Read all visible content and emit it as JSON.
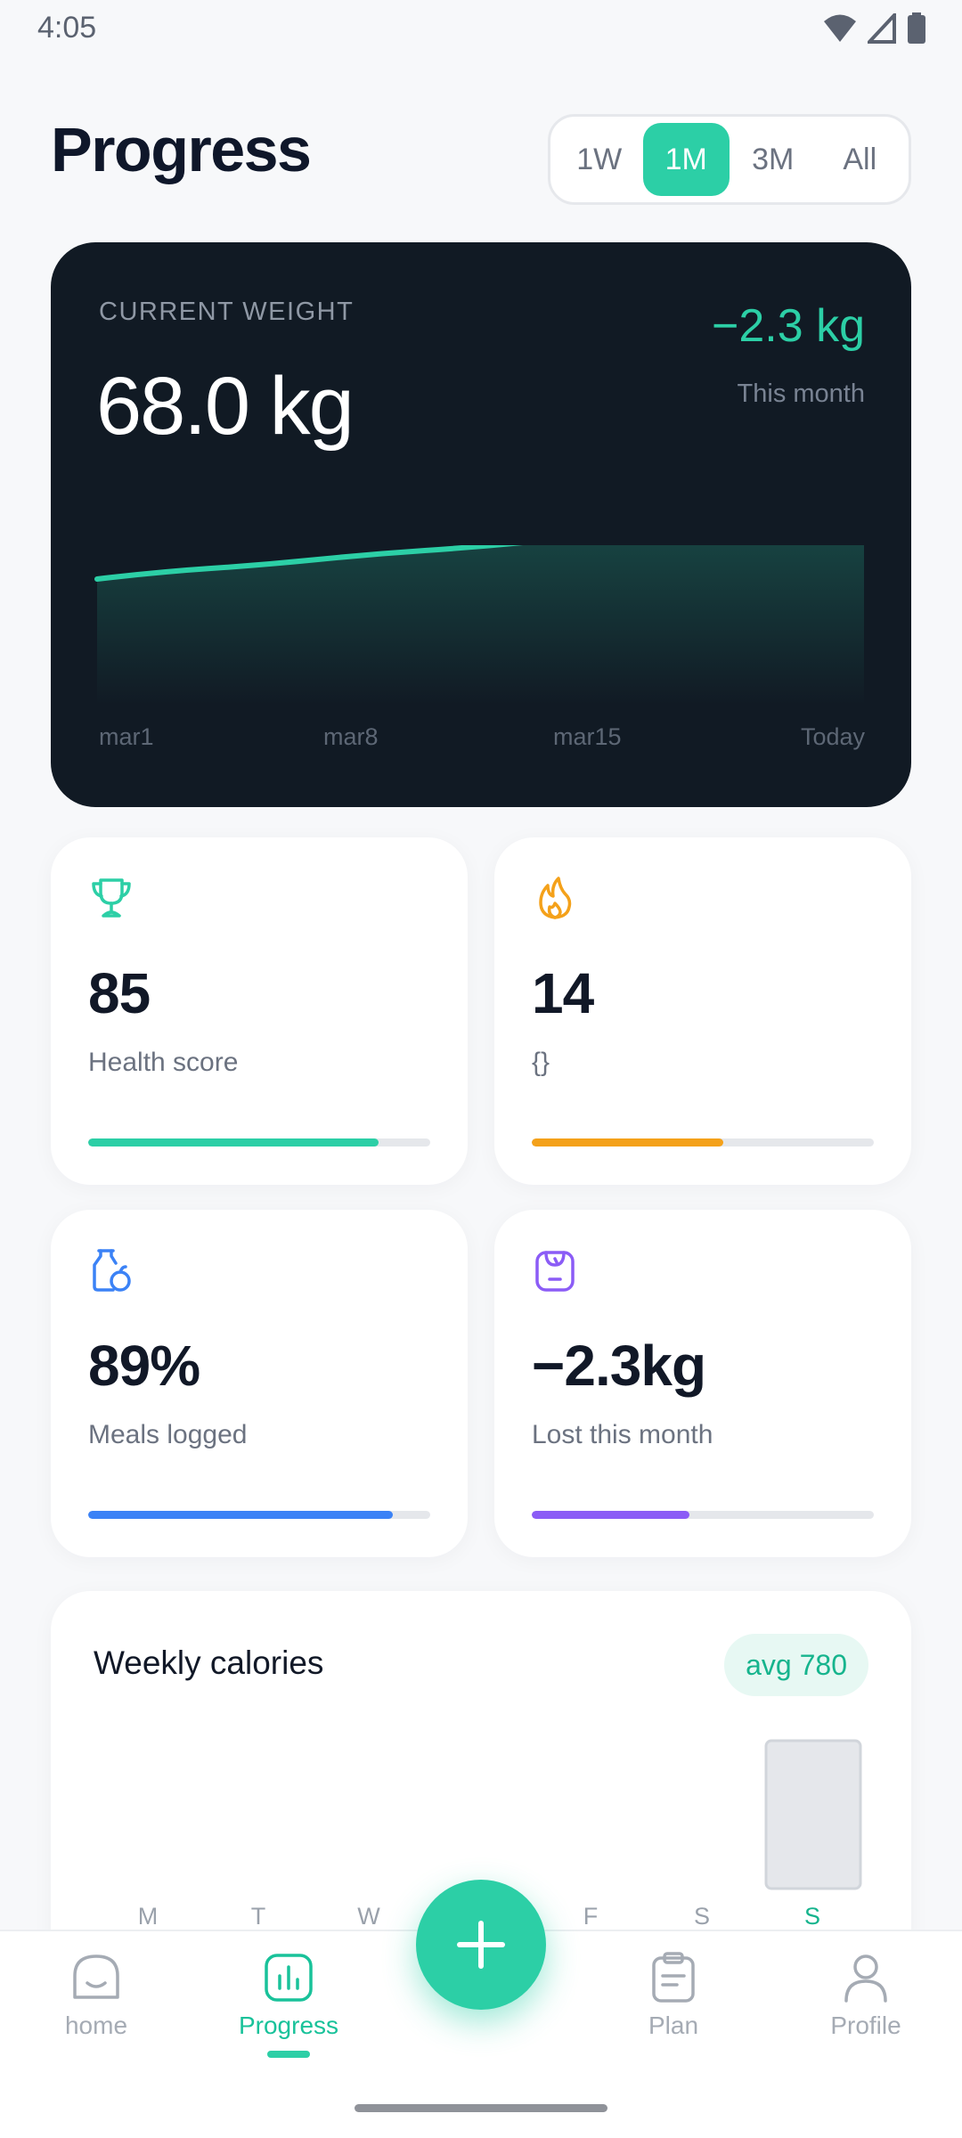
{
  "status_bar": {
    "time": "4:05"
  },
  "header": {
    "title": "Progress"
  },
  "range": {
    "options": [
      "1W",
      "1M",
      "3M",
      "All"
    ],
    "selected": "1M"
  },
  "weight_card": {
    "label": "CURRENT WEIGHT",
    "value": "68.0 kg",
    "delta": "−2.3 kg",
    "period": "This month",
    "x_labels": [
      "mar1",
      "mar8",
      "mar15",
      "Today"
    ]
  },
  "stats": [
    {
      "value": "85",
      "label": "Health score",
      "progress": 0.85,
      "color": "#2ccfa6",
      "icon": "trophy-icon"
    },
    {
      "value": "14",
      "label": "{}",
      "progress": 0.56,
      "color": "#f4a11a",
      "icon": "flame-icon"
    },
    {
      "value": "89%",
      "label": "Meals logged",
      "progress": 0.89,
      "color": "#3b82f6",
      "icon": "food-icon"
    },
    {
      "value": "−2.3kg",
      "label": "Lost this month",
      "progress": 0.46,
      "color": "#8b5cf6",
      "icon": "scale-icon"
    }
  ],
  "calories": {
    "title": "Weekly calories",
    "badge": "avg 780",
    "days": [
      "M",
      "T",
      "W",
      "T",
      "F",
      "S",
      "S"
    ],
    "today_index": 6,
    "colors": {
      "accent": "#16b48d",
      "bar": "#e5e7eb"
    }
  },
  "nav": {
    "items": [
      {
        "label": "home",
        "icon": "home-icon"
      },
      {
        "label": "Progress",
        "icon": "chart-icon"
      },
      {
        "label": "Plan",
        "icon": "clipboard-icon"
      },
      {
        "label": "Profile",
        "icon": "profile-icon"
      }
    ],
    "active_index": 1
  },
  "colors": {
    "accent": "#2ccfa6",
    "dark_card": "#111a24"
  }
}
